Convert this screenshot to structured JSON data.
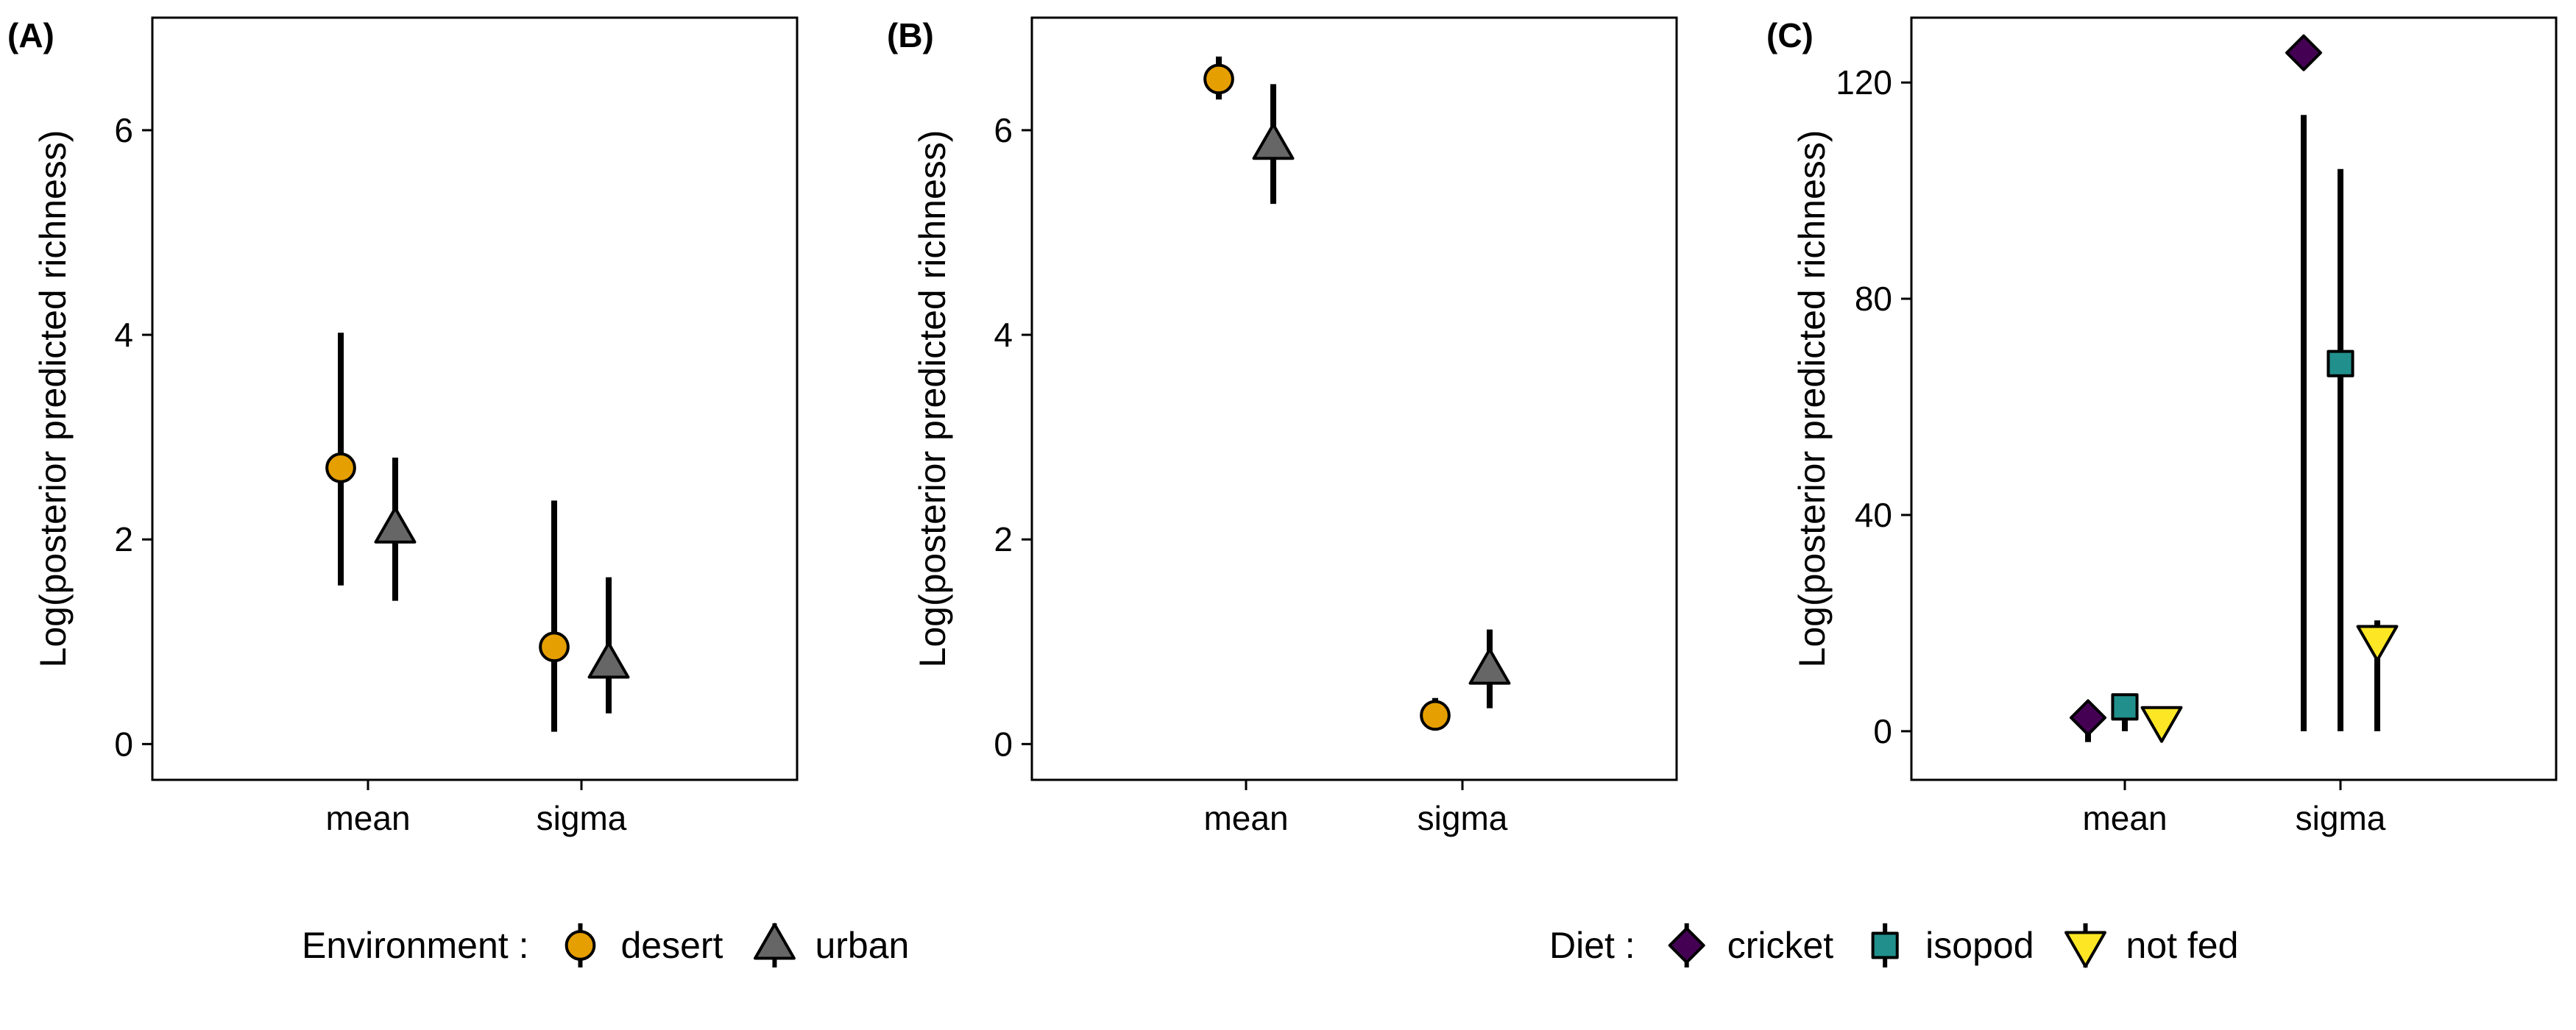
{
  "chart_data": [
    {
      "panel": "(A)",
      "type": "scatter",
      "ylabel": "Log(posterior predicted richness)",
      "xlabel": "",
      "categories": [
        "mean",
        "sigma"
      ],
      "ylim": [
        -0.35,
        7.1
      ],
      "yticks": [
        0,
        2,
        4,
        6
      ],
      "grid": false,
      "series": [
        {
          "name": "desert",
          "shape": "circle",
          "color": "#E69F00",
          "values": [
            2.7,
            0.95
          ],
          "lower": [
            1.55,
            0.12
          ],
          "upper": [
            4.02,
            2.38
          ]
        },
        {
          "name": "urban",
          "shape": "triangle-up",
          "color": "#666666",
          "values": [
            2.1,
            0.78
          ],
          "lower": [
            1.4,
            0.3
          ],
          "upper": [
            2.8,
            1.63
          ]
        }
      ]
    },
    {
      "panel": "(B)",
      "type": "scatter",
      "ylabel": "Log(posterior predicted richness)",
      "xlabel": "",
      "categories": [
        "mean",
        "sigma"
      ],
      "ylim": [
        -0.35,
        7.1
      ],
      "yticks": [
        0,
        2,
        4,
        6
      ],
      "grid": false,
      "series": [
        {
          "name": "desert",
          "shape": "circle",
          "color": "#E69F00",
          "values": [
            6.5,
            0.28
          ],
          "lower": [
            6.3,
            0.2
          ],
          "upper": [
            6.72,
            0.45
          ]
        },
        {
          "name": "urban",
          "shape": "triangle-up",
          "color": "#666666",
          "values": [
            5.85,
            0.72
          ],
          "lower": [
            5.28,
            0.35
          ],
          "upper": [
            6.45,
            1.12
          ]
        }
      ]
    },
    {
      "panel": "(C)",
      "type": "scatter",
      "ylabel": "Log(posterior predicted richness)",
      "xlabel": "",
      "categories": [
        "mean",
        "sigma"
      ],
      "ylim": [
        -9,
        132
      ],
      "yticks": [
        0,
        40,
        80,
        120
      ],
      "grid": false,
      "series": [
        {
          "name": "cricket",
          "shape": "diamond",
          "color": "#440154",
          "values": [
            2.5,
            125.5
          ],
          "lower": [
            -2,
            0
          ],
          "upper": [
            5.5,
            114
          ]
        },
        {
          "name": "isopod",
          "shape": "square",
          "color": "#21908C",
          "values": [
            4.5,
            68
          ],
          "lower": [
            0,
            0
          ],
          "upper": [
            7,
            104
          ]
        },
        {
          "name": "not fed",
          "shape": "triangle-down",
          "color": "#FDE725",
          "values": [
            2,
            17
          ],
          "lower": [
            0,
            0
          ],
          "upper": [
            4,
            20.5
          ]
        }
      ]
    }
  ],
  "legends": [
    {
      "title": "Environment :",
      "placement": "bottom-left",
      "items": [
        {
          "label": "desert",
          "shape": "circle",
          "color": "#E69F00"
        },
        {
          "label": "urban",
          "shape": "triangle-up",
          "color": "#666666"
        }
      ]
    },
    {
      "title": "Diet :",
      "placement": "bottom-right",
      "items": [
        {
          "label": "cricket",
          "shape": "diamond",
          "color": "#440154"
        },
        {
          "label": "isopod",
          "shape": "square",
          "color": "#21908C"
        },
        {
          "label": "not fed",
          "shape": "triangle-down",
          "color": "#FDE725"
        }
      ]
    }
  ]
}
